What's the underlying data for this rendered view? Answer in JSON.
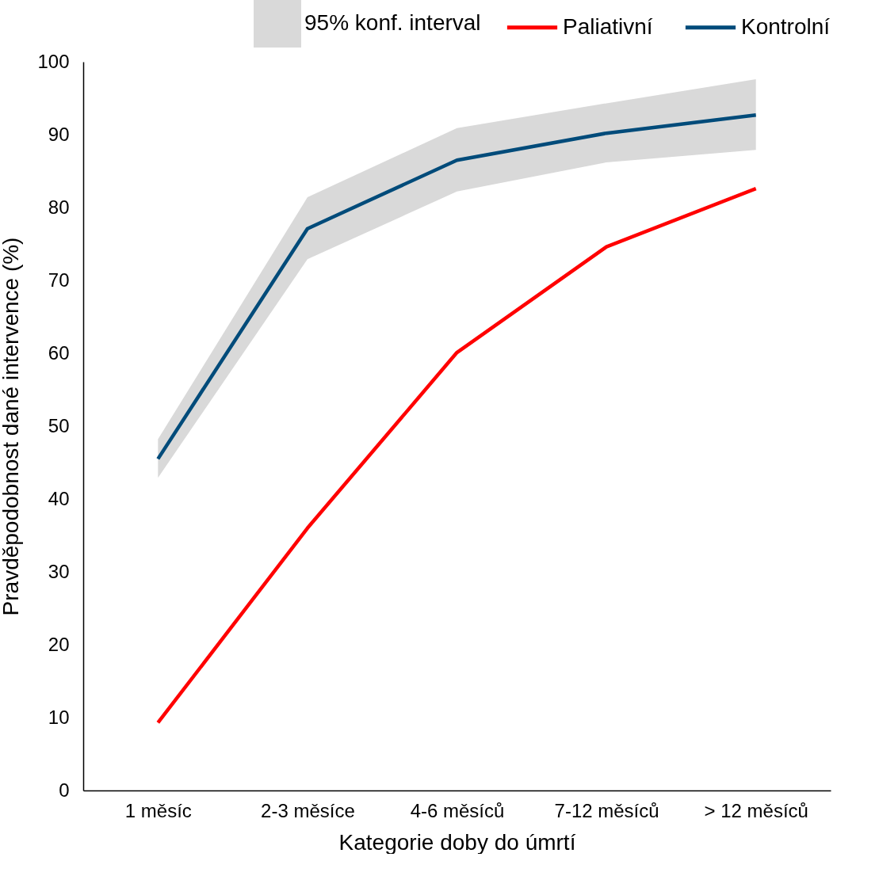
{
  "chart_data": {
    "type": "line",
    "xlabel": "Kategorie doby do úmrtí",
    "ylabel": "Pravděpodobnost dané intervence (%)",
    "categories": [
      "1 měsíc",
      "2-3 měsíce",
      "4-6 měsíců",
      "7-12 měsíců",
      "> 12 měsíců"
    ],
    "series": [
      {
        "name": "Paliativní",
        "color": "#ff0000",
        "values": [
          9.3,
          36.0,
          60.1,
          74.6,
          82.6
        ]
      },
      {
        "name": "Kontrolní",
        "color": "#004b7a",
        "values": [
          45.5,
          77.1,
          86.5,
          90.2,
          92.7
        ],
        "lower": [
          42.9,
          72.9,
          82.2,
          86.2,
          87.9
        ],
        "upper": [
          48.2,
          81.4,
          90.9,
          94.3,
          97.6
        ]
      }
    ],
    "annotations": [
      "95% konf. interval"
    ],
    "ylim": [
      0,
      100
    ],
    "yticks": [
      0,
      10,
      20,
      30,
      40,
      50,
      60,
      70,
      80,
      90,
      100
    ],
    "grid": false,
    "legend": "top right",
    "marker": "none",
    "line_style": "solid"
  }
}
